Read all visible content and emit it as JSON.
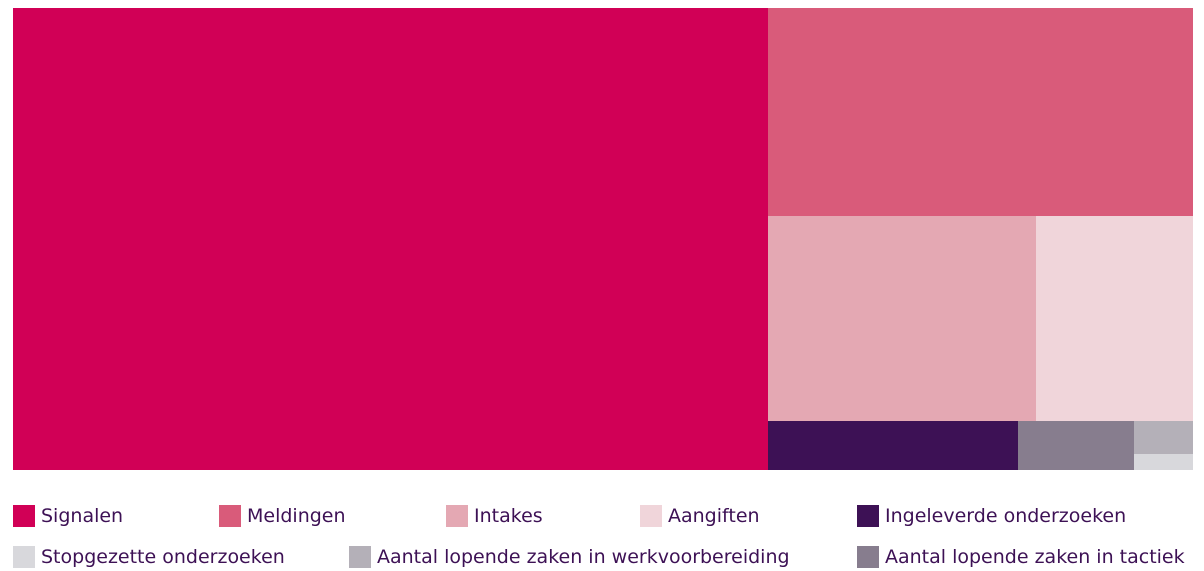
{
  "chart_data": {
    "type": "treemap",
    "items": [
      {
        "name": "Signalen",
        "value": 3714,
        "color": "#d10056"
      },
      {
        "name": "Meldingen",
        "value": 938,
        "color": "#d95b7a"
      },
      {
        "name": "Intakes",
        "value": 584,
        "color": "#e4a8b3"
      },
      {
        "name": "Aangiften",
        "value": 343,
        "color": "#f0d5da"
      },
      {
        "name": "Ingeleverde onderzoeken",
        "value": 131,
        "color": "#3d1155"
      },
      {
        "name": "Aantal lopende zaken in tactiek",
        "value": 61,
        "color": "#877d8e"
      },
      {
        "name": "Aantal lopende zaken in werkvoorbereiding",
        "value": 21,
        "color": "#b4b0b8"
      },
      {
        "name": "Stopgezette onderzoeken",
        "value": 10,
        "color": "#d8d8dc"
      }
    ],
    "legend": [
      {
        "label": "Signalen",
        "color": "#d10056"
      },
      {
        "label": "Meldingen",
        "color": "#d95b7a"
      },
      {
        "label": "Intakes",
        "color": "#e4a8b3"
      },
      {
        "label": "Aangiften",
        "color": "#f0d5da"
      },
      {
        "label": "Ingeleverde onderzoeken",
        "color": "#3d1155"
      },
      {
        "label": "Stopgezette onderzoeken",
        "color": "#d8d8dc"
      },
      {
        "label": "Aantal lopende zaken in werkvoorbereiding",
        "color": "#b4b0b8"
      },
      {
        "label": "Aantal lopende zaken in tactiek",
        "color": "#877d8e"
      }
    ],
    "legend_position": "bottom"
  }
}
